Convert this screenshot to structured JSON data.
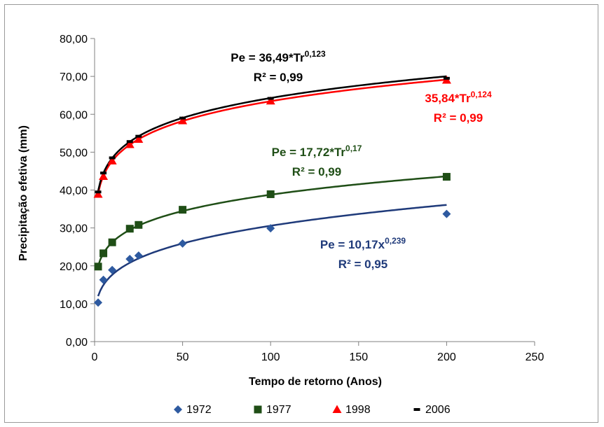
{
  "chart_data": {
    "type": "scatter",
    "xlabel": "Tempo de retorno (Anos)",
    "ylabel": "Precipitação efetiva (mm)",
    "xlim": [
      0,
      250
    ],
    "ylim": [
      0,
      80
    ],
    "xticks": [
      "0",
      "50",
      "100",
      "150",
      "200",
      "250"
    ],
    "yticks": [
      "0,00",
      "10,00",
      "20,00",
      "30,00",
      "40,00",
      "50,00",
      "60,00",
      "70,00",
      "80,00"
    ],
    "grid": false,
    "legend_position": "bottom",
    "series": [
      {
        "name": "1972",
        "color": "#2e5aa0",
        "line_color": "#1f3a7a",
        "marker": "diamond",
        "x": [
          2,
          5,
          10,
          20,
          25,
          50,
          100,
          200
        ],
        "y": [
          10.3,
          16.3,
          18.9,
          21.8,
          22.7,
          25.9,
          29.9,
          33.7
        ],
        "fit": {
          "a": 10.17,
          "b": 0.239
        },
        "equation": {
          "prefix": "Pe = 10,17x",
          "exponent": "0,239",
          "r2": "R² = 0,95"
        }
      },
      {
        "name": "1977",
        "color": "#1f4e16",
        "line_color": "#1f4e16",
        "marker": "square",
        "x": [
          2,
          5,
          10,
          20,
          25,
          50,
          100,
          200
        ],
        "y": [
          19.8,
          23.3,
          26.2,
          29.8,
          30.8,
          34.8,
          38.9,
          43.5
        ],
        "fit": {
          "a": 17.72,
          "b": 0.17
        },
        "equation": {
          "prefix": "Pe = 17,72*Tr",
          "exponent": "0,17",
          "r2": "R² = 0,99"
        }
      },
      {
        "name": "1998",
        "color": "#ff0000",
        "line_color": "#ff0000",
        "marker": "triangle",
        "x": [
          2,
          5,
          10,
          20,
          25,
          50,
          100,
          200
        ],
        "y": [
          38.9,
          43.6,
          47.7,
          52.0,
          53.4,
          58.3,
          63.5,
          69.0
        ],
        "fit": {
          "a": 35.84,
          "b": 0.124
        },
        "equation": {
          "prefix": "35,84*Tr",
          "exponent": "0,124",
          "r2": "R² = 0,99"
        }
      },
      {
        "name": "2006",
        "color": "#000000",
        "line_color": "#000000",
        "marker": "dash",
        "x": [
          2,
          5,
          10,
          20,
          25,
          50,
          100,
          200
        ],
        "y": [
          39.5,
          44.5,
          48.5,
          52.8,
          54.2,
          59.0,
          64.2,
          69.5
        ],
        "fit": {
          "a": 36.49,
          "b": 0.123
        },
        "equation": {
          "prefix": "Pe = 36,49*Tr",
          "exponent": "0,123",
          "r2": "R² = 0,99"
        }
      }
    ]
  }
}
